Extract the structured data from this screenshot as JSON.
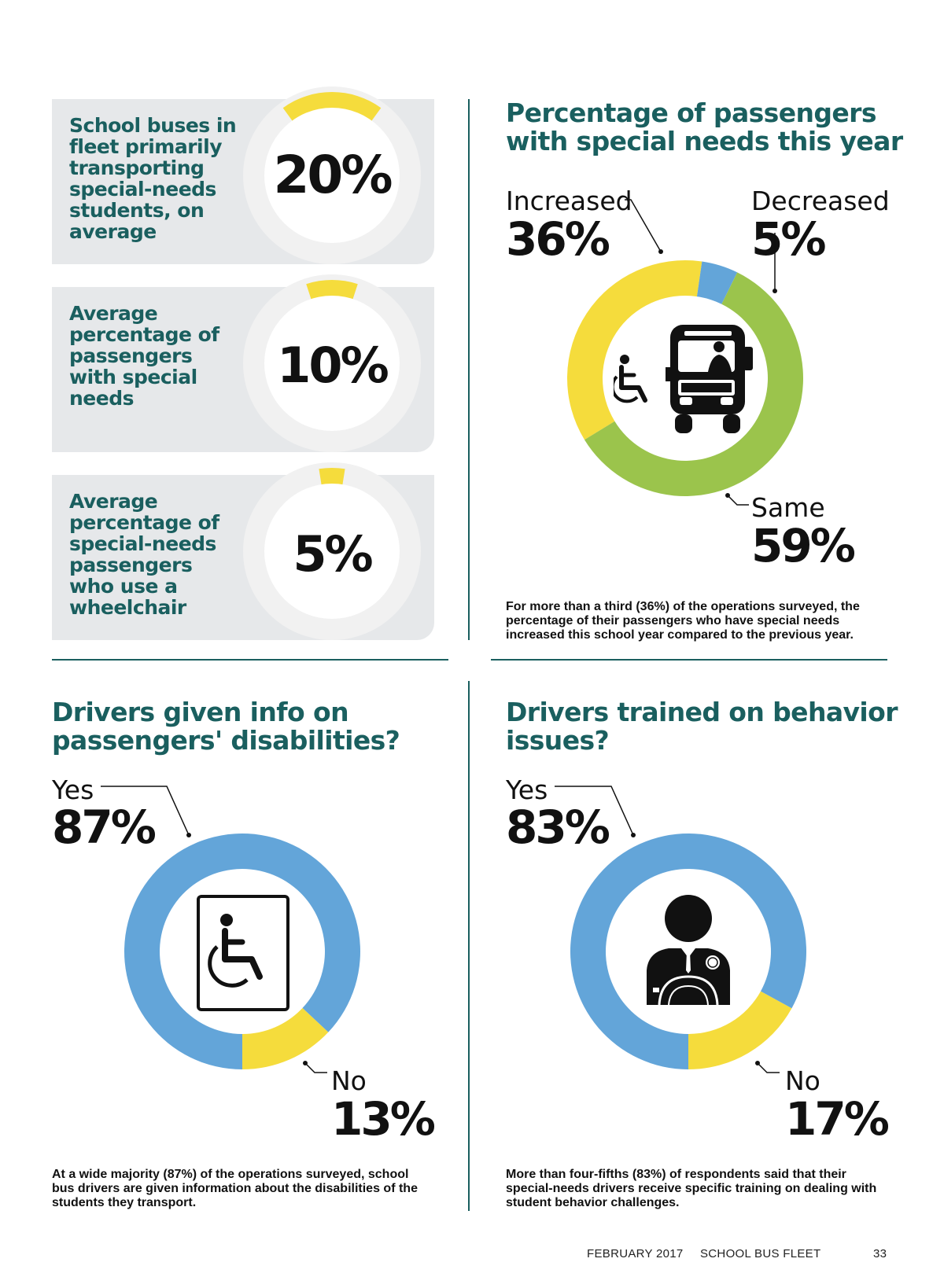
{
  "stats": [
    {
      "label": "School buses in fleet primarily transporting special-needs students, on average",
      "value": "20%"
    },
    {
      "label": "Average percentage of passengers with special needs",
      "value": "10%"
    },
    {
      "label": "Average percentage of special-needs passengers who use a wheelchair",
      "value": "5%"
    }
  ],
  "charts": {
    "passengers": {
      "title": "Percentage of passengers with special needs this year",
      "increased_word": "Increased",
      "increased_pct": "36%",
      "decreased_word": "Decreased",
      "decreased_pct": "5%",
      "same_word": "Same",
      "same_pct": "59%",
      "caption": "For more than a third (36%) of the operations surveyed, the percentage of their passengers who have special needs increased this school year compared to the previous year."
    },
    "info": {
      "title": "Drivers given info on passengers' disabilities?",
      "yes_word": "Yes",
      "yes_pct": "87%",
      "no_word": "No",
      "no_pct": "13%",
      "caption": "At a wide majority (87%) of the operations surveyed, school bus drivers are given information about the disabilities of the students they transport."
    },
    "training": {
      "title": "Drivers trained on behavior issues?",
      "yes_word": "Yes",
      "yes_pct": "83%",
      "no_word": "No",
      "no_pct": "17%",
      "caption": "More than four-fifths (83%) of respondents said that their special-needs drivers receive specific training on dealing with student behavior challenges."
    }
  },
  "chart_data": [
    {
      "type": "gauge",
      "title": "School buses in fleet primarily transporting special-needs students, on average",
      "values": [
        20
      ],
      "color": "#f5dc3c"
    },
    {
      "type": "gauge",
      "title": "Average percentage of passengers with special needs",
      "values": [
        10
      ],
      "color": "#f5dc3c"
    },
    {
      "type": "gauge",
      "title": "Average percentage of special-needs passengers who use a wheelchair",
      "values": [
        5
      ],
      "color": "#f5dc3c"
    },
    {
      "type": "pie",
      "title": "Percentage of passengers with special needs this year",
      "categories": [
        "Increased",
        "Decreased",
        "Same"
      ],
      "values": [
        36,
        5,
        59
      ],
      "colors": [
        "#f5dc3c",
        "#63a5d9",
        "#9bc44c"
      ]
    },
    {
      "type": "pie",
      "title": "Drivers given info on passengers' disabilities?",
      "categories": [
        "Yes",
        "No"
      ],
      "values": [
        87,
        13
      ],
      "colors": [
        "#63a5d9",
        "#f5dc3c"
      ]
    },
    {
      "type": "pie",
      "title": "Drivers trained on behavior issues?",
      "categories": [
        "Yes",
        "No"
      ],
      "values": [
        83,
        17
      ],
      "colors": [
        "#63a5d9",
        "#f5dc3c"
      ]
    }
  ],
  "footer": {
    "date": "FEBRUARY 2017",
    "publication": "SCHOOL BUS FLEET",
    "page": "33"
  },
  "colors": {
    "teal": "#1a5f5f",
    "yellow": "#f5dc3c",
    "blue": "#63a5d9",
    "green": "#9bc44c",
    "panel": "#e6e8ea"
  }
}
